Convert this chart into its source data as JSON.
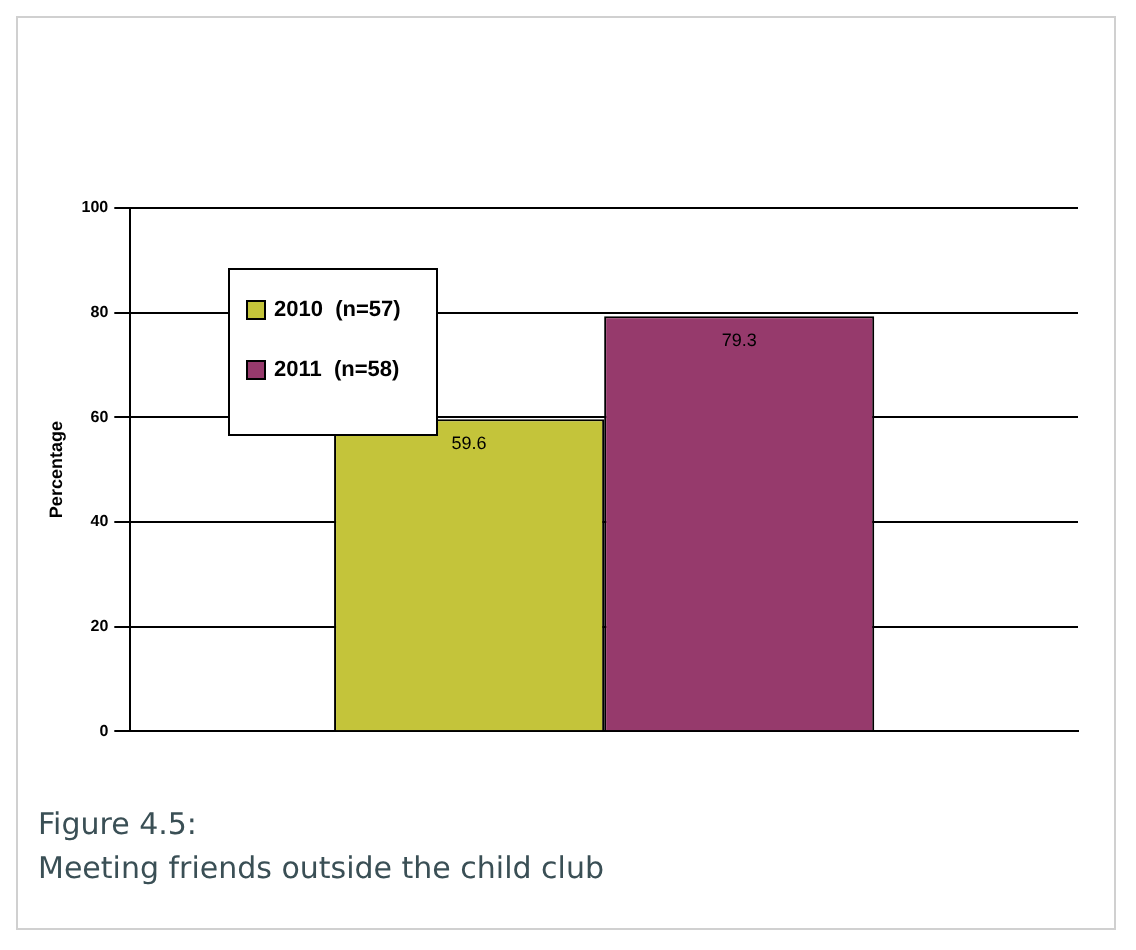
{
  "chart_data": {
    "type": "bar",
    "categories": [
      null
    ],
    "series": [
      {
        "name": "2010  (n=57)",
        "color": "#c4c43a",
        "values": [
          59.6
        ]
      },
      {
        "name": "2011  (n=58)",
        "color": "#963a6c",
        "values": [
          79.3
        ]
      }
    ],
    "ylabel": "Percentage",
    "ylim": [
      0,
      100
    ],
    "yticks": [
      0,
      20,
      40,
      60,
      80,
      100
    ],
    "grid": "y",
    "legend": "top left",
    "data_labels": true,
    "annotations": [
      "Figure 4.5:",
      "Meeting friends outside the child club"
    ]
  }
}
